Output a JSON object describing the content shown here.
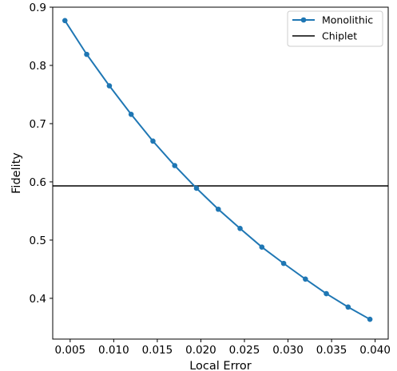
{
  "chart_data": {
    "type": "line",
    "title": "",
    "xlabel": "Local Error",
    "ylabel": "Fidelity",
    "xlim": [
      0.003,
      0.0415
    ],
    "ylim": [
      0.33,
      0.9
    ],
    "xticks": [
      0.005,
      0.01,
      0.015,
      0.02,
      0.025,
      0.03,
      0.035,
      0.04
    ],
    "xtick_labels": [
      "0.005",
      "0.010",
      "0.015",
      "0.020",
      "0.025",
      "0.030",
      "0.035",
      "0.040"
    ],
    "yticks": [
      0.4,
      0.5,
      0.6,
      0.7,
      0.8,
      0.9
    ],
    "ytick_labels": [
      "0.4",
      "0.5",
      "0.6",
      "0.7",
      "0.8",
      "0.9"
    ],
    "grid": false,
    "legend_position": "top-right",
    "series": [
      {
        "name": "Monolithic",
        "color": "#1f77b4",
        "marker": "circle",
        "x": [
          0.0044,
          0.0069,
          0.0095,
          0.012,
          0.0145,
          0.017,
          0.0195,
          0.022,
          0.0245,
          0.027,
          0.0295,
          0.032,
          0.0344,
          0.0369,
          0.0394
        ],
        "y": [
          0.877,
          0.819,
          0.765,
          0.716,
          0.67,
          0.628,
          0.589,
          0.553,
          0.52,
          0.488,
          0.46,
          0.433,
          0.408,
          0.385,
          0.364
        ]
      },
      {
        "name": "Chiplet",
        "color": "#000000",
        "kind": "hline",
        "y": 0.593
      }
    ]
  }
}
